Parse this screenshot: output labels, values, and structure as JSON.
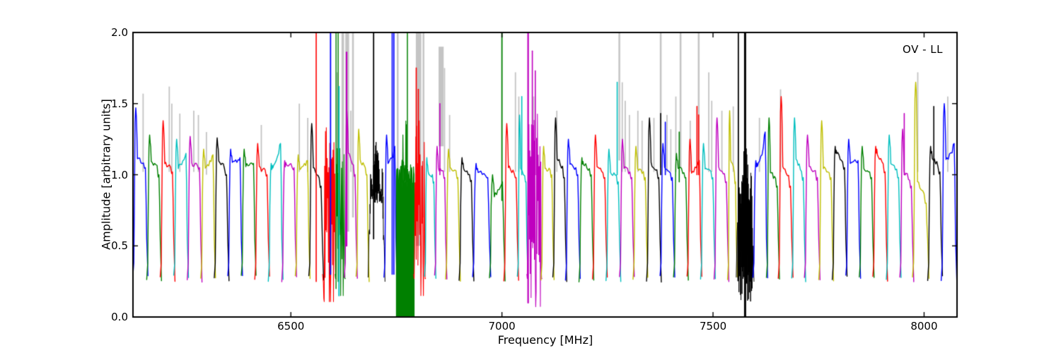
{
  "figure": {
    "background": "#ffffff"
  },
  "axes": {
    "xlabel": "Frequency [MHz]",
    "ylabel": "Amplitude [arbitrary units]",
    "annotation": "OV - LL",
    "xtick_labels": [
      "6500",
      "7000",
      "7500",
      "8000"
    ],
    "ytick_labels": [
      "0.0",
      "0.5",
      "1.0",
      "1.5",
      "2.0"
    ],
    "border_color": "#000000"
  },
  "chart_data": {
    "type": "line",
    "title": "",
    "xlabel": "Frequency [MHz]",
    "ylabel": "Amplitude [arbitrary units]",
    "annotation": "OV - LL",
    "xlim": [
      6126,
      8078
    ],
    "ylim": [
      0,
      2
    ],
    "xticks": [
      6500,
      7000,
      7500,
      8000
    ],
    "yticks": [
      0,
      0.5,
      1,
      1.5,
      2
    ],
    "grid": false,
    "legend": "none",
    "colors": {
      "b": "#0000ff",
      "g": "#008000",
      "r": "#ff0000",
      "c": "#00bfbf",
      "m": "#bf00bf",
      "y": "#bfbf00",
      "k": "#000000",
      "gray": "#c4c4c4"
    },
    "note": "Per-subband bandpass spectra, ~32 MHz wide, color cycle b,g,r,c,m,y,k; band tuples are [f_start_MHz, f_end_MHz, color, shape_type, p1, p2, p3] where shape n: p1=left-peak amp, p2=plateau amp, p3=right-bump amp; shape w: wild RFI oscillation between p1(lo) and p2(hi); shape o: dense noise oscillation between p1 and p2; shape S: saturated solid fill 0 to ~p1.",
    "bands": [
      [
        6127,
        6160,
        "b",
        "n",
        1.47,
        1.12,
        1.05
      ],
      [
        6160,
        6192,
        "g",
        "n",
        1.28,
        1.1,
        1.0
      ],
      [
        6192,
        6224,
        "r",
        "n",
        1.38,
        1.08,
        1.02
      ],
      [
        6224,
        6256,
        "c",
        "n",
        1.25,
        1.05,
        1.15
      ],
      [
        6256,
        6288,
        "m",
        "n",
        1.27,
        1.08,
        1.05
      ],
      [
        6288,
        6320,
        "y",
        "n",
        1.18,
        1.05,
        1.14
      ],
      [
        6320,
        6352,
        "k",
        "n",
        1.26,
        1.1,
        1.0
      ],
      [
        6352,
        6384,
        "b",
        "n",
        1.18,
        1.08,
        1.12
      ],
      [
        6384,
        6416,
        "g",
        "n",
        1.18,
        1.06,
        1.08
      ],
      [
        6416,
        6448,
        "r",
        "n",
        1.22,
        1.05,
        1.0
      ],
      [
        6448,
        6480,
        "c",
        "n",
        1.08,
        1.05,
        1.22
      ],
      [
        6480,
        6512,
        "m",
        "n",
        1.1,
        1.07,
        1.05
      ],
      [
        6512,
        6544,
        "y",
        "n",
        1.14,
        1.04,
        1.1
      ],
      [
        6544,
        6576,
        "k",
        "n",
        1.36,
        1.05,
        0.92
      ],
      [
        6576,
        6606,
        "r",
        "w",
        0.18,
        1.4
      ],
      [
        6606,
        6628,
        "g",
        "w",
        0.25,
        1.32
      ],
      [
        6628,
        6656,
        "m",
        "n",
        1.45,
        1.15,
        1.0
      ],
      [
        6656,
        6684,
        "y",
        "n",
        1.32,
        1.1,
        1.0
      ],
      [
        6684,
        6722,
        "k",
        "o",
        0.8,
        1.28
      ],
      [
        6722,
        6750,
        "b",
        "n",
        1.28,
        1.08,
        1.2
      ],
      [
        6750,
        6792,
        "g",
        "S",
        0.95
      ],
      [
        6792,
        6818,
        "r",
        "w",
        0.25,
        1.4
      ],
      [
        6818,
        6842,
        "c",
        "n",
        1.12,
        1.02,
        0.95
      ],
      [
        6842,
        6868,
        "m",
        "n",
        1.2,
        1.05,
        0.98
      ],
      [
        6868,
        6900,
        "y",
        "n",
        1.18,
        1.05,
        0.98
      ],
      [
        6900,
        6932,
        "k",
        "n",
        1.12,
        1.05,
        0.96
      ],
      [
        6932,
        6972,
        "b",
        "n",
        1.08,
        1.02,
        0.98
      ],
      [
        6972,
        7006,
        "g",
        "n",
        1.0,
        0.85,
        0.95
      ],
      [
        7006,
        7038,
        "r",
        "n",
        1.36,
        1.05,
        0.98
      ],
      [
        7038,
        7060,
        "c",
        "n",
        1.42,
        1.05,
        0.95
      ],
      [
        7060,
        7094,
        "m",
        "w",
        0.12,
        1.45
      ],
      [
        7094,
        7122,
        "y",
        "n",
        1.2,
        1.05,
        1.0
      ],
      [
        7122,
        7152,
        "k",
        "n",
        1.4,
        1.12,
        0.98
      ],
      [
        7152,
        7184,
        "b",
        "n",
        1.25,
        1.08,
        1.0
      ],
      [
        7184,
        7216,
        "g",
        "n",
        1.12,
        1.08,
        1.0
      ],
      [
        7216,
        7248,
        "r",
        "n",
        1.28,
        1.05,
        0.98
      ],
      [
        7248,
        7280,
        "c",
        "n",
        1.18,
        1.02,
        0.95
      ],
      [
        7280,
        7312,
        "m",
        "n",
        1.25,
        1.05,
        0.98
      ],
      [
        7312,
        7344,
        "y",
        "n",
        1.2,
        1.05,
        0.98
      ],
      [
        7344,
        7376,
        "k",
        "n",
        1.4,
        1.08,
        0.98
      ],
      [
        7376,
        7408,
        "b",
        "n",
        1.22,
        1.05,
        0.98
      ],
      [
        7408,
        7440,
        "g",
        "n",
        1.15,
        1.05,
        0.98
      ],
      [
        7440,
        7472,
        "r",
        "n",
        1.25,
        1.02,
        1.1
      ],
      [
        7472,
        7504,
        "c",
        "n",
        1.22,
        1.05,
        0.98
      ],
      [
        7504,
        7536,
        "m",
        "n",
        1.4,
        1.05,
        0.95
      ],
      [
        7536,
        7556,
        "y",
        "n",
        1.45,
        1.1,
        0.95
      ],
      [
        7556,
        7596,
        "k",
        "o",
        0.1,
        1.25
      ],
      [
        7596,
        7628,
        "b",
        "n",
        1.1,
        1.05,
        1.3
      ],
      [
        7628,
        7656,
        "g",
        "n",
        1.4,
        1.02,
        0.92
      ],
      [
        7656,
        7688,
        "r",
        "n",
        1.55,
        1.05,
        0.92
      ],
      [
        7688,
        7718,
        "c",
        "n",
        1.4,
        1.1,
        0.98
      ],
      [
        7718,
        7752,
        "m",
        "n",
        1.28,
        1.05,
        0.98
      ],
      [
        7752,
        7784,
        "y",
        "n",
        1.38,
        1.05,
        0.98
      ],
      [
        7784,
        7816,
        "k",
        "n",
        1.2,
        1.15,
        1.05
      ],
      [
        7816,
        7848,
        "b",
        "n",
        1.25,
        1.08,
        1.1
      ],
      [
        7848,
        7880,
        "g",
        "n",
        1.2,
        1.05,
        0.98
      ],
      [
        7880,
        7912,
        "r",
        "n",
        1.2,
        1.15,
        1.02
      ],
      [
        7912,
        7944,
        "c",
        "n",
        1.28,
        1.08,
        0.98
      ],
      [
        7944,
        7974,
        "m",
        "n",
        1.32,
        1.02,
        0.92
      ],
      [
        7974,
        8010,
        "y",
        "n",
        1.65,
        0.95,
        0.8
      ],
      [
        8010,
        8042,
        "k",
        "n",
        1.2,
        1.12,
        1.02
      ],
      [
        8042,
        8076,
        "b",
        "n",
        1.5,
        1.1,
        1.22
      ]
    ],
    "band_spikes": [
      [
        6797,
        1.75,
        "r"
      ],
      [
        6802,
        1.6,
        "r"
      ],
      [
        6853,
        1.5,
        "m"
      ],
      [
        7047,
        1.55,
        "c"
      ],
      [
        7072,
        1.87,
        "m"
      ],
      [
        7079,
        1.73,
        "m"
      ],
      [
        7273,
        1.65,
        "c"
      ],
      [
        7376,
        1.43,
        "k"
      ],
      [
        7387,
        1.37,
        "b"
      ],
      [
        7420,
        1.3,
        "g"
      ],
      [
        7462,
        1.48,
        "r"
      ],
      [
        7466,
        1.42,
        "r"
      ],
      [
        7953,
        1.43,
        "m"
      ],
      [
        8023,
        1.48,
        "k"
      ]
    ],
    "vlines": [
      [
        6560,
        0.25,
        2.0,
        "r",
        1.6
      ],
      [
        6594,
        0.3,
        2.0,
        "b",
        1.8
      ],
      [
        6607,
        0.2,
        2.0,
        "g",
        1.4
      ],
      [
        6612,
        0.25,
        2.0,
        "g",
        1.4
      ],
      [
        6614,
        0.15,
        1.62,
        "c",
        1.8
      ],
      [
        6632,
        0.5,
        1.86,
        "m",
        2.2
      ],
      [
        6696,
        0.55,
        2.0,
        "k",
        1.8
      ],
      [
        6740,
        0.3,
        2.0,
        "b",
        1.6
      ],
      [
        6744,
        0.3,
        2.0,
        "b",
        1.6
      ],
      [
        6776,
        1.05,
        2.0,
        "g",
        1.5
      ],
      [
        7000,
        0.82,
        2.0,
        "g",
        1.8
      ],
      [
        7062,
        0.1,
        2.0,
        "m",
        2.2
      ],
      [
        7560,
        0.35,
        2.0,
        "k",
        1.8
      ],
      [
        7576,
        0.0,
        2.0,
        "k",
        3.0
      ]
    ],
    "gray_columns": [
      [
        6620,
        6626,
        0.5,
        2.0
      ],
      [
        6629,
        6638,
        0.6,
        2.0
      ],
      [
        6645,
        6649,
        0.7,
        2.0
      ],
      [
        6751,
        6755,
        0.9,
        2.0
      ],
      [
        6796,
        6809,
        0.5,
        2.0
      ],
      [
        6812,
        6816,
        0.7,
        2.0
      ],
      [
        6850,
        6862,
        1.2,
        1.9
      ],
      [
        7276,
        7280,
        1.1,
        2.0
      ],
      [
        7374,
        7378,
        1.05,
        2.0
      ],
      [
        7421,
        7425,
        1.05,
        2.0
      ],
      [
        7464,
        7468,
        1.05,
        2.0
      ]
    ],
    "gray_spikes": [
      [
        6150,
        1.57
      ],
      [
        6212,
        1.62
      ],
      [
        6218,
        1.5
      ],
      [
        6237,
        1.43
      ],
      [
        6270,
        1.45
      ],
      [
        6281,
        1.42
      ],
      [
        6300,
        1.3
      ],
      [
        6430,
        1.35
      ],
      [
        6520,
        1.5
      ],
      [
        6540,
        1.4
      ],
      [
        6610,
        1.72
      ],
      [
        6642,
        1.45
      ],
      [
        6864,
        1.75
      ],
      [
        6876,
        1.42
      ],
      [
        7032,
        1.72
      ],
      [
        7040,
        1.55
      ],
      [
        7075,
        1.55
      ],
      [
        7130,
        1.45
      ],
      [
        7285,
        1.65
      ],
      [
        7292,
        1.52
      ],
      [
        7302,
        1.42
      ],
      [
        7322,
        1.45
      ],
      [
        7332,
        1.38
      ],
      [
        7360,
        1.4
      ],
      [
        7391,
        1.42
      ],
      [
        7400,
        1.32
      ],
      [
        7412,
        1.55
      ],
      [
        7446,
        1.38
      ],
      [
        7490,
        1.72
      ],
      [
        7497,
        1.52
      ],
      [
        7521,
        1.45
      ],
      [
        7548,
        1.48
      ],
      [
        7610,
        1.4
      ],
      [
        7660,
        1.6
      ],
      [
        7985,
        1.72
      ],
      [
        8056,
        1.55
      ]
    ]
  }
}
